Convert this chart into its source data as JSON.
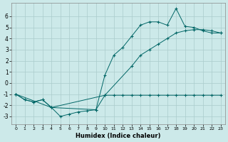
{
  "xlabel": "Humidex (Indice chaleur)",
  "xlim": [
    -0.5,
    23.5
  ],
  "ylim": [
    -3.7,
    7.2
  ],
  "yticks": [
    -3,
    -2,
    -1,
    0,
    1,
    2,
    3,
    4,
    5,
    6
  ],
  "xticks": [
    0,
    1,
    2,
    3,
    4,
    5,
    6,
    7,
    8,
    9,
    10,
    11,
    12,
    13,
    14,
    15,
    16,
    17,
    18,
    19,
    20,
    21,
    22,
    23
  ],
  "bg_color": "#cce9e9",
  "grid_color": "#aacccc",
  "line_color": "#006666",
  "line1_x": [
    0,
    1,
    2,
    3,
    4,
    5,
    6,
    7,
    8,
    9,
    10,
    11,
    12,
    13,
    14,
    15,
    16,
    17,
    18,
    19,
    20,
    21,
    22,
    23
  ],
  "line1_y": [
    -1,
    -1.5,
    -1.7,
    -1.5,
    -2.2,
    -3.0,
    -2.8,
    -2.6,
    -2.5,
    -2.4,
    -1.1,
    -1.1,
    -1.1,
    -1.1,
    -1.1,
    -1.1,
    -1.1,
    -1.1,
    -1.1,
    -1.1,
    -1.1,
    -1.1,
    -1.1,
    -1.1
  ],
  "line2_x": [
    0,
    1,
    2,
    3,
    4,
    9,
    10,
    11,
    12,
    13,
    14,
    15,
    16,
    17,
    18,
    19,
    20,
    21,
    22,
    23
  ],
  "line2_y": [
    -1,
    -1.5,
    -1.7,
    -1.5,
    -2.2,
    -2.4,
    0.7,
    2.5,
    3.2,
    4.2,
    5.2,
    5.5,
    5.5,
    5.2,
    6.7,
    5.1,
    5.0,
    4.7,
    4.5,
    4.5
  ],
  "line3_x": [
    0,
    4,
    10,
    13,
    14,
    15,
    16,
    17,
    18,
    19,
    20,
    21,
    22,
    23
  ],
  "line3_y": [
    -1,
    -2.2,
    -1.1,
    1.5,
    2.5,
    3.0,
    3.5,
    4.0,
    4.5,
    4.7,
    4.8,
    4.8,
    4.7,
    4.5
  ]
}
